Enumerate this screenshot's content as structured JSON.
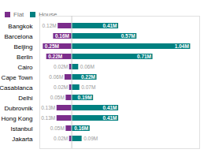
{
  "chart_data": {
    "type": "bar",
    "orientation": "horizontal",
    "categories": [
      "Bangkok",
      "Barcelona",
      "Beijing",
      "Berlin",
      "Cairo",
      "Cape Town",
      "Casablanca",
      "Delhi",
      "Dubrovnik",
      "Hong Kong",
      "Istanbul",
      "Jakarta"
    ],
    "series": [
      {
        "name": "Flat",
        "color": "#7B2D8B",
        "values": [
          0.12,
          0.16,
          0.25,
          0.22,
          0.02,
          0.06,
          0.02,
          0.05,
          0.13,
          0.13,
          0.05,
          0.02
        ],
        "value_labels": [
          "0.12M",
          "0.16M",
          "0.25M",
          "0.22M",
          "0.02M",
          "0.06M",
          "0.02M",
          "0.05M",
          "0.13M",
          "0.13M",
          "0.05M",
          "0.02M"
        ]
      },
      {
        "name": "House",
        "color": "#008080",
        "values": [
          0.41,
          0.57,
          1.04,
          0.71,
          0.06,
          0.22,
          0.07,
          0.19,
          0.41,
          0.41,
          0.16,
          0.09
        ],
        "value_labels": [
          "0.41M",
          "0.57M",
          "1.04M",
          "0.71M",
          "0.06M",
          "0.22M",
          "0.07M",
          "0.19M",
          "0.41M",
          "0.41M",
          "0.16M",
          "0.09M"
        ]
      }
    ],
    "xlim": [
      -0.28,
      1.12
    ],
    "data_labels": true,
    "tick_labels": "y",
    "grid": false,
    "legend": "upper left"
  }
}
